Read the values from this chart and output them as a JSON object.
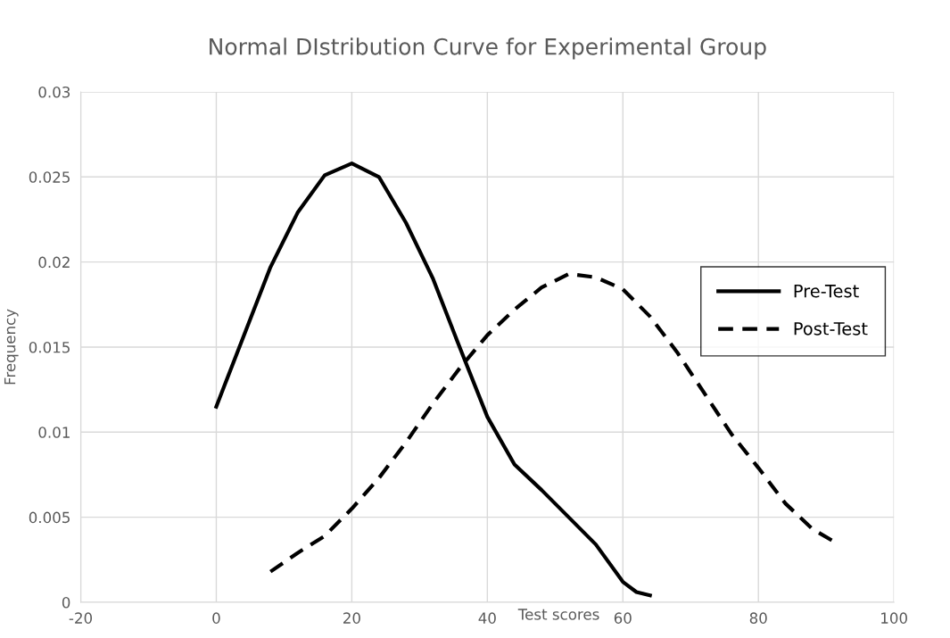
{
  "chart_data": {
    "type": "line",
    "title": "Normal DIstribution Curve for Experimental Group",
    "xlabel": "Test scores",
    "ylabel": "Frequency",
    "xlim": [
      -20,
      100
    ],
    "xticks": [
      -20,
      0,
      20,
      40,
      60,
      80,
      100
    ],
    "ylim": [
      0,
      0.03
    ],
    "yticks": [
      0,
      0.005,
      0.01,
      0.015,
      0.02,
      0.025,
      0.03
    ],
    "grid": true,
    "legend": "right",
    "marker": "none",
    "series": [
      {
        "name": "Pre-Test",
        "color": "#000000",
        "line_style": "solid",
        "x": [
          0,
          8,
          12,
          16,
          20,
          24,
          28,
          32,
          36,
          40,
          44,
          48,
          52,
          56,
          60,
          62,
          64
        ],
        "values": [
          0.0115,
          0.0197,
          0.0229,
          0.0251,
          0.0258,
          0.025,
          0.0223,
          0.019,
          0.0149,
          0.0109,
          0.0081,
          0.0066,
          0.005,
          0.0034,
          0.0012,
          0.0006,
          0.0004
        ]
      },
      {
        "name": "Post-Test",
        "color": "#000000",
        "line_style": "dashed",
        "x": [
          8,
          12,
          16,
          20,
          24,
          28,
          32,
          36,
          40,
          44,
          48,
          52,
          56,
          60,
          64,
          68,
          72,
          76,
          80,
          84,
          88,
          91
        ],
        "values": [
          0.0018,
          0.0029,
          0.0039,
          0.0055,
          0.0073,
          0.0094,
          0.0117,
          0.0138,
          0.0157,
          0.0172,
          0.0185,
          0.0193,
          0.0191,
          0.0184,
          0.0168,
          0.0147,
          0.0123,
          0.0099,
          0.0079,
          0.0058,
          0.0043,
          0.0036
        ]
      }
    ]
  }
}
